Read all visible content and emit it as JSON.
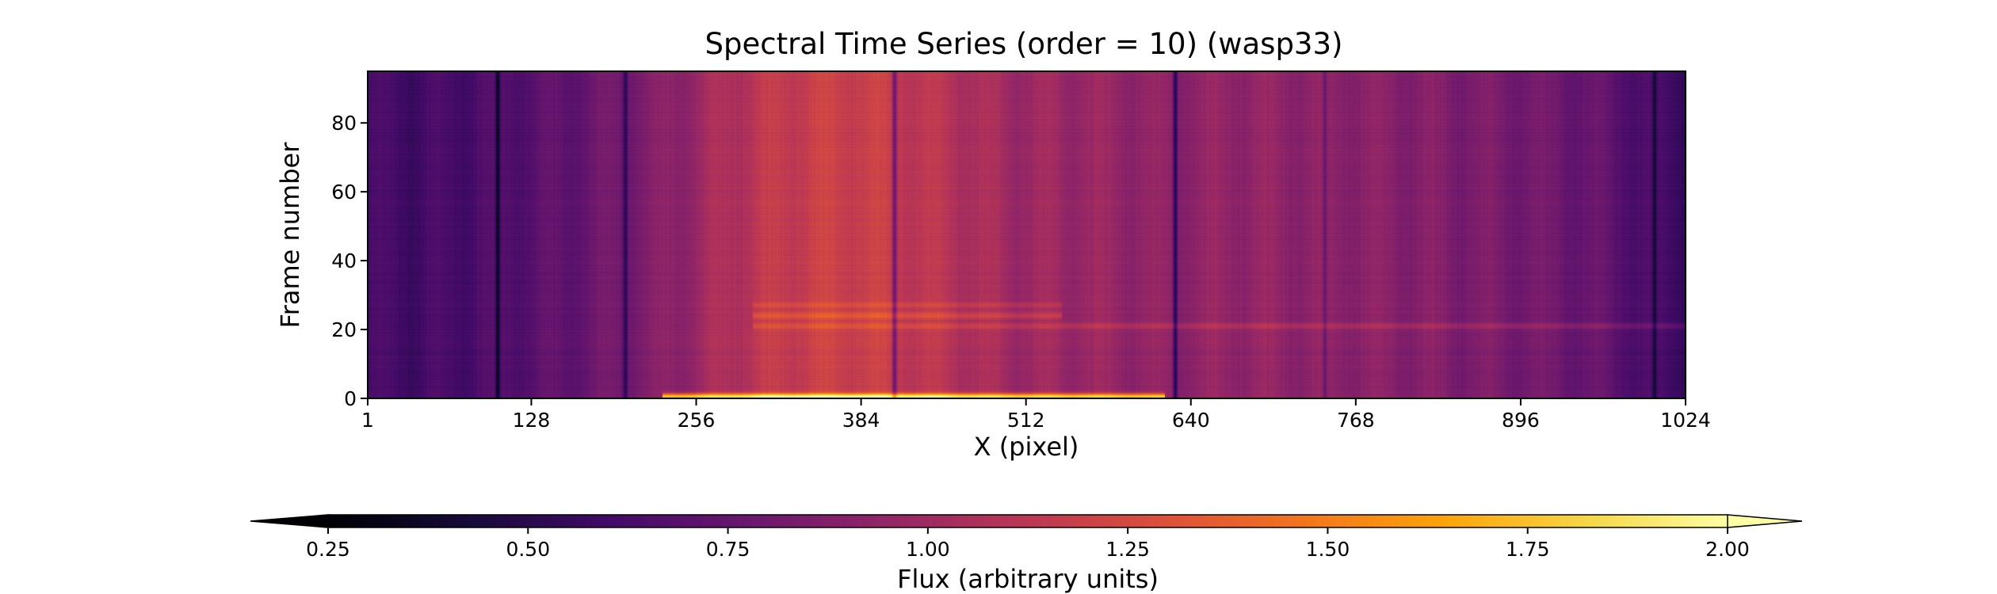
{
  "chart_data": {
    "type": "heatmap",
    "title": "Spectral Time Series (order = 10) (wasp33)",
    "xlabel": "X (pixel)",
    "ylabel": "Frame number",
    "x_ticks": [
      "1",
      "128",
      "256",
      "384",
      "512",
      "640",
      "768",
      "896",
      "1024"
    ],
    "x_tick_values": [
      1,
      128,
      256,
      384,
      512,
      640,
      768,
      896,
      1024
    ],
    "y_ticks": [
      "0",
      "20",
      "40",
      "60",
      "80"
    ],
    "y_tick_values": [
      0,
      20,
      40,
      60,
      80
    ],
    "xlim": [
      1,
      1024
    ],
    "ylim": [
      0,
      95
    ],
    "colormap": "inferno",
    "colorbar": {
      "label": "Flux (arbitrary units)",
      "ticks": [
        "0.25",
        "0.50",
        "0.75",
        "1.00",
        "1.25",
        "1.50",
        "1.75",
        "2.00"
      ],
      "tick_values": [
        0.25,
        0.5,
        0.75,
        1.0,
        1.25,
        1.5,
        1.75,
        2.0
      ],
      "range": [
        0.25,
        2.0
      ],
      "extend": "both",
      "orientation": "horizontal",
      "location": "bottom"
    },
    "continuum_flux": {
      "x": [
        1,
        40,
        100,
        160,
        220,
        256,
        300,
        340,
        380,
        420,
        460,
        500,
        540,
        580,
        620,
        680,
        740,
        800,
        860,
        920,
        960,
        1000,
        1024
      ],
      "flux": [
        0.62,
        0.6,
        0.66,
        0.74,
        0.86,
        0.98,
        1.12,
        1.18,
        1.2,
        1.15,
        1.08,
        1.0,
        0.98,
        0.96,
        0.92,
        0.95,
        0.92,
        0.9,
        0.85,
        0.8,
        0.74,
        0.62,
        0.58
      ]
    },
    "absorption_lines": [
      {
        "x": 102,
        "depth": 0.35
      },
      {
        "x": 201,
        "depth": 0.28
      },
      {
        "x": 410,
        "depth": 0.38
      },
      {
        "x": 628,
        "depth": 0.4
      },
      {
        "x": 744,
        "depth": 0.18
      },
      {
        "x": 1000,
        "depth": 0.25
      }
    ],
    "bright_rows": [
      {
        "frame": 0.5,
        "gain": 0.85,
        "x_range": [
          230,
          620
        ]
      },
      {
        "frame": 21,
        "gain": 0.15,
        "x_range": [
          300,
          1024
        ]
      },
      {
        "frame": 24,
        "gain": 0.18,
        "x_range": [
          300,
          540
        ]
      },
      {
        "frame": 27,
        "gain": 0.1,
        "x_range": [
          300,
          540
        ]
      }
    ]
  }
}
